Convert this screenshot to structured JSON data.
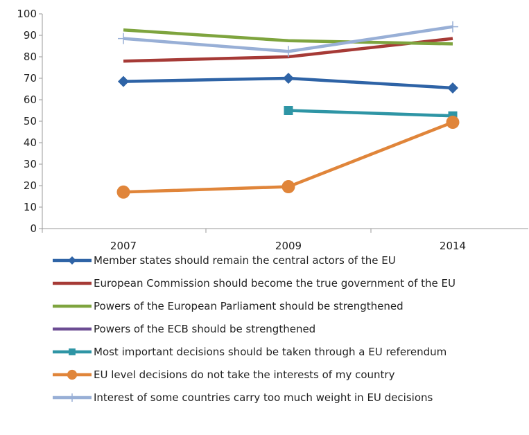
{
  "chart_data": {
    "type": "line",
    "title": "",
    "xlabel": "",
    "ylabel": "",
    "categories": [
      "2007",
      "2009",
      "2014"
    ],
    "ylim": [
      0,
      100
    ],
    "yticks": [
      0,
      10,
      20,
      30,
      40,
      50,
      60,
      70,
      80,
      90,
      100
    ],
    "grid": false,
    "legend_position": "bottom",
    "series": [
      {
        "name": "Member states should remain the central actors of the EU",
        "color": "#2E63A6",
        "marker": "diamond",
        "values": [
          68.5,
          70,
          65.5
        ]
      },
      {
        "name": "European Commission should become the true government of the EU",
        "color": "#A63A36",
        "marker": "none",
        "values": [
          78,
          80,
          88.5
        ]
      },
      {
        "name": "Powers of the European Parliament should be strengthened",
        "color": "#7EA43E",
        "marker": "none",
        "values": [
          92.5,
          87.5,
          86
        ]
      },
      {
        "name": "Powers of the ECB should be strengthened",
        "color": "#6B4C93",
        "marker": "none",
        "values": [
          null,
          null,
          null
        ]
      },
      {
        "name": "Most important decisions should be taken through a EU referendum",
        "color": "#2E95A5",
        "marker": "square",
        "values": [
          null,
          55,
          52.5
        ]
      },
      {
        "name": "EU level decisions do not take the interests of my country",
        "color": "#E0853A",
        "marker": "circle",
        "values": [
          17,
          19.5,
          49.5
        ]
      },
      {
        "name": "Interest of some countries carry too much weight in EU decisions",
        "color": "#98AFD6",
        "marker": "plus",
        "values": [
          88.5,
          82.5,
          94
        ]
      }
    ]
  }
}
